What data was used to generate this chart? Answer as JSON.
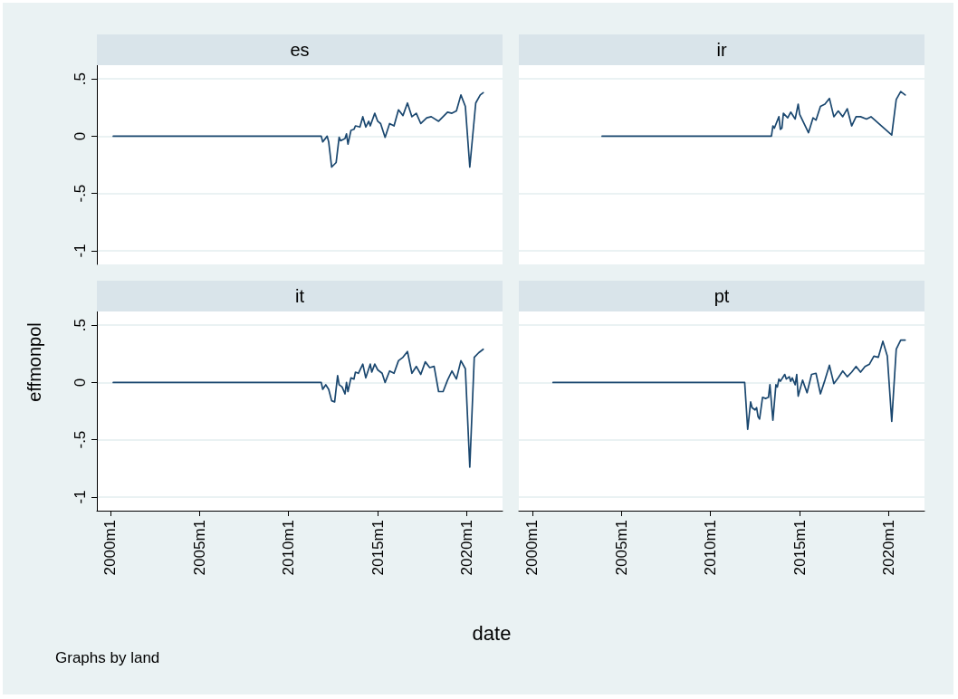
{
  "chart_data": [
    {
      "type": "line",
      "title": "es",
      "color": "#1a476f",
      "marker": "none",
      "grid": "y",
      "tick_labels": "y",
      "xlim": [
        "1999-04",
        "2022-01"
      ],
      "ylim": [
        -1.12,
        0.62
      ],
      "yticks": [
        {
          "value": -1,
          "label": "-1"
        },
        {
          "value": -0.5,
          "label": "-.5"
        },
        0,
        {
          "value": 0.5,
          "label": ".5"
        }
      ],
      "x": [
        "2000-03",
        "2011-11",
        "2011-12",
        "2012-03",
        "2012-04",
        "2012-06",
        "2012-09",
        "2012-11",
        "2012-12",
        "2013-03",
        "2013-04",
        "2013-05",
        "2013-07",
        "2013-09",
        "2013-10",
        "2014-01",
        "2014-03",
        "2014-05",
        "2014-07",
        "2014-08",
        "2014-11",
        "2015-01",
        "2015-03",
        "2015-06",
        "2015-09",
        "2015-12",
        "2016-03",
        "2016-06",
        "2016-09",
        "2016-12",
        "2017-03",
        "2017-06",
        "2017-10",
        "2018-01",
        "2018-06",
        "2018-12",
        "2019-03",
        "2019-06",
        "2019-09",
        "2019-12",
        "2020-03",
        "2020-07",
        "2020-10",
        "2020-12"
      ],
      "values": [
        0,
        0,
        -0.05,
        0,
        -0.05,
        -0.27,
        -0.23,
        -0.01,
        -0.04,
        -0.02,
        0.02,
        -0.07,
        0.05,
        0.06,
        0.09,
        0.08,
        0.17,
        0.08,
        0.13,
        0.09,
        0.2,
        0.13,
        0.11,
        -0.01,
        0.11,
        0.09,
        0.23,
        0.18,
        0.29,
        0.17,
        0.2,
        0.11,
        0.16,
        0.17,
        0.13,
        0.21,
        0.2,
        0.22,
        0.36,
        0.26,
        -0.27,
        0.29,
        0.36,
        0.38
      ]
    },
    {
      "type": "line",
      "title": "ir",
      "color": "#1a476f",
      "marker": "none",
      "grid": "y",
      "tick_labels": false,
      "xlim": [
        "1999-04",
        "2022-01"
      ],
      "ylim": [
        -1.12,
        0.62
      ],
      "yticks": [
        -1,
        -0.5,
        0,
        0.5
      ],
      "x": [
        "2003-12",
        "2013-06",
        "2013-07",
        "2013-08",
        "2013-11",
        "2013-12",
        "2014-01",
        "2014-02",
        "2014-05",
        "2014-07",
        "2014-10",
        "2014-12",
        "2015-01",
        "2015-07",
        "2015-10",
        "2015-12",
        "2016-03",
        "2016-06",
        "2016-09",
        "2016-12",
        "2017-03",
        "2017-06",
        "2017-09",
        "2017-12",
        "2018-03",
        "2018-06",
        "2018-10",
        "2019-01",
        "2020-03",
        "2020-06",
        "2020-09",
        "2020-12"
      ],
      "values": [
        0,
        0,
        0.09,
        0.07,
        0.17,
        0.06,
        0.07,
        0.2,
        0.16,
        0.21,
        0.15,
        0.28,
        0.19,
        0.03,
        0.16,
        0.14,
        0.26,
        0.28,
        0.33,
        0.17,
        0.22,
        0.17,
        0.24,
        0.09,
        0.17,
        0.17,
        0.15,
        0.17,
        0.01,
        0.32,
        0.39,
        0.36
      ]
    },
    {
      "type": "line",
      "title": "it",
      "color": "#1a476f",
      "marker": "none",
      "grid": "y",
      "xlabel": "date",
      "ylabel": "effmonpol",
      "annotations": [
        "Graphs by land"
      ],
      "xlim": [
        "1999-04",
        "2022-01"
      ],
      "ylim": [
        -1.12,
        0.62
      ],
      "xticks": [
        {
          "value": "2000-01",
          "label": "2000m1"
        },
        {
          "value": "2005-01",
          "label": "2005m1"
        },
        {
          "value": "2010-01",
          "label": "2010m1"
        },
        {
          "value": "2015-01",
          "label": "2015m1"
        },
        {
          "value": "2020-01",
          "label": "2020m1"
        }
      ],
      "yticks": [
        {
          "value": -1,
          "label": "-1"
        },
        {
          "value": -0.5,
          "label": "-.5"
        },
        0,
        {
          "value": 0.5,
          "label": ".5"
        }
      ],
      "x": [
        "2000-03",
        "2011-11",
        "2011-12",
        "2012-02",
        "2012-04",
        "2012-06",
        "2012-08",
        "2012-10",
        "2012-11",
        "2013-01",
        "2013-03",
        "2013-04",
        "2013-05",
        "2013-07",
        "2013-09",
        "2013-10",
        "2013-12",
        "2014-03",
        "2014-05",
        "2014-08",
        "2014-09",
        "2014-11",
        "2015-01",
        "2015-04",
        "2015-06",
        "2015-09",
        "2015-12",
        "2016-03",
        "2016-06",
        "2016-09",
        "2016-12",
        "2017-03",
        "2017-06",
        "2017-09",
        "2017-12",
        "2018-03",
        "2018-06",
        "2018-09",
        "2018-12",
        "2019-03",
        "2019-06",
        "2019-09",
        "2019-12",
        "2020-03",
        "2020-06",
        "2020-09",
        "2020-12"
      ],
      "values": [
        0,
        0,
        -0.06,
        -0.02,
        -0.06,
        -0.16,
        -0.17,
        0.06,
        -0.02,
        -0.04,
        -0.1,
        0,
        -0.08,
        0.04,
        0.03,
        0.09,
        0.08,
        0.16,
        0.04,
        0.16,
        0.09,
        0.16,
        0.11,
        0.08,
        0,
        0.1,
        0.08,
        0.19,
        0.22,
        0.27,
        0.08,
        0.14,
        0.07,
        0.18,
        0.13,
        0.14,
        -0.08,
        -0.08,
        0.02,
        0.1,
        0.03,
        0.19,
        0.12,
        -0.74,
        0.22,
        0.26,
        0.29
      ]
    },
    {
      "type": "line",
      "title": "pt",
      "color": "#1a476f",
      "marker": "none",
      "grid": "y",
      "tick_labels": "x",
      "xlim": [
        "1999-04",
        "2022-01"
      ],
      "ylim": [
        -1.12,
        0.62
      ],
      "xticks": [
        {
          "value": "2000-01",
          "label": "2000m1"
        },
        {
          "value": "2005-01",
          "label": "2005m1"
        },
        {
          "value": "2010-01",
          "label": "2010m1"
        },
        {
          "value": "2015-01",
          "label": "2015m1"
        },
        {
          "value": "2020-01",
          "label": "2020m1"
        }
      ],
      "yticks": [
        -1,
        -0.5,
        0,
        0.5
      ],
      "x": [
        "2001-03",
        "2011-12",
        "2012-02",
        "2012-04",
        "2012-05",
        "2012-07",
        "2012-08",
        "2012-09",
        "2012-10",
        "2012-12",
        "2013-02",
        "2013-04",
        "2013-05",
        "2013-07",
        "2013-09",
        "2013-10",
        "2013-11",
        "2013-12",
        "2014-03",
        "2014-04",
        "2014-06",
        "2014-07",
        "2014-08",
        "2014-10",
        "2014-11",
        "2014-12",
        "2015-03",
        "2015-06",
        "2015-09",
        "2015-12",
        "2016-03",
        "2016-06",
        "2016-09",
        "2016-12",
        "2017-03",
        "2017-06",
        "2017-09",
        "2017-12",
        "2018-03",
        "2018-06",
        "2018-09",
        "2018-12",
        "2019-03",
        "2019-06",
        "2019-09",
        "2019-12",
        "2020-03",
        "2020-06",
        "2020-09",
        "2020-12"
      ],
      "values": [
        0,
        0,
        -0.41,
        -0.17,
        -0.22,
        -0.24,
        -0.22,
        -0.3,
        -0.32,
        -0.13,
        -0.14,
        -0.13,
        -0.02,
        -0.33,
        -0.02,
        -0.04,
        0.03,
        0.01,
        0.07,
        0.03,
        0.05,
        0.01,
        0.04,
        -0.02,
        0.07,
        -0.12,
        0.02,
        -0.09,
        0.07,
        0.08,
        -0.1,
        0.02,
        0.15,
        -0.01,
        0.04,
        0.1,
        0.05,
        0.09,
        0.14,
        0.09,
        0.14,
        0.16,
        0.23,
        0.22,
        0.36,
        0.23,
        -0.34,
        0.29,
        0.37,
        0.37
      ]
    }
  ]
}
